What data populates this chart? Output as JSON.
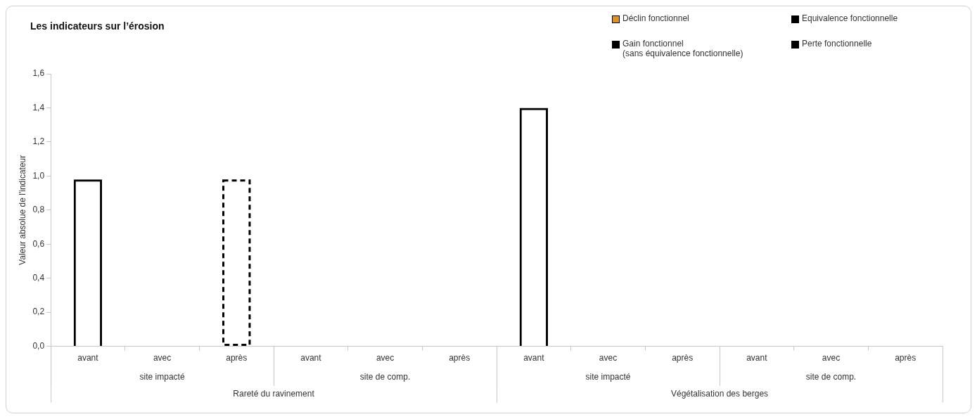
{
  "chart_data": {
    "type": "bar",
    "title": "Les indicateurs sur l’érosion",
    "ylabel": "Valeur absolue de l'indicateur",
    "categories": [
      "avant",
      "avec",
      "après",
      "avant",
      "avec",
      "après",
      "avant",
      "avec",
      "après",
      "avant",
      "avec",
      "après"
    ],
    "series": [
      {
        "color": "#000000",
        "line_style": "solid",
        "values": [
          0.98,
          null,
          null,
          null,
          null,
          null,
          1.4,
          null,
          null,
          null,
          null,
          null
        ]
      },
      {
        "color": "#000000",
        "line_style": "dashed",
        "values": [
          null,
          null,
          0.98,
          null,
          null,
          null,
          null,
          null,
          null,
          null,
          null,
          null
        ]
      },
      {
        "name": "Déclin fonctionnel",
        "color": "#d9922e",
        "values": [
          null,
          null,
          null,
          null,
          null,
          null,
          null,
          null,
          null,
          null,
          null,
          null
        ]
      },
      {
        "name": "Equivalence fonctionnelle",
        "color": "#000000",
        "values": [
          null,
          null,
          null,
          null,
          null,
          null,
          null,
          null,
          null,
          null,
          null,
          null
        ]
      },
      {
        "name": "Gain fonctionnel\n(sans équivalence fonctionnelle)",
        "color": "#000000",
        "values": [
          null,
          null,
          null,
          null,
          null,
          null,
          null,
          null,
          null,
          null,
          null,
          null
        ]
      },
      {
        "name": "Perte fonctionnelle",
        "color": "#000000",
        "values": [
          null,
          null,
          null,
          null,
          null,
          null,
          null,
          null,
          null,
          null,
          null,
          null
        ]
      }
    ],
    "ylim": [
      0,
      1.6
    ],
    "yticks": [
      {
        "value": 0,
        "label": "0,0"
      },
      {
        "value": 0.2,
        "label": "0,2"
      },
      {
        "value": 0.4,
        "label": "0,4"
      },
      {
        "value": 0.6,
        "label": "0,6"
      },
      {
        "value": 0.8,
        "label": "0,8"
      },
      {
        "value": 1.0,
        "label": "1,0"
      },
      {
        "value": 1.2,
        "label": "1,2"
      },
      {
        "value": 1.4,
        "label": "1,4"
      },
      {
        "value": 1.6,
        "label": "1,6"
      }
    ],
    "annotations": [
      "site impacté",
      "site de comp.",
      "site impacté",
      "site de comp.",
      "Rareté du ravinement",
      "Végétalisation des berges"
    ],
    "grid": false,
    "legend": "top right"
  }
}
